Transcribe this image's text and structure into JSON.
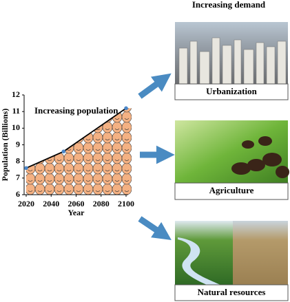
{
  "chart_data": {
    "type": "line",
    "title": "Increasing population",
    "x_label": "Year",
    "y_label": "Population (Billions)",
    "x": [
      2020,
      2050,
      2100
    ],
    "values": [
      7.6,
      8.6,
      11.2
    ],
    "color": "#000000",
    "marker_color": "#4a86c8",
    "fill_color": "#f4b183",
    "xlim": [
      2020,
      2100
    ],
    "xticks": [
      2020,
      2040,
      2060,
      2080,
      2100
    ],
    "ylim": [
      6,
      12
    ],
    "yticks": [
      6,
      7,
      8,
      9,
      10,
      11,
      12
    ]
  },
  "demand": {
    "title": "Increasing demand",
    "items": [
      {
        "label": "Urbanization"
      },
      {
        "label": "Agriculture"
      },
      {
        "label": "Natural resources"
      }
    ]
  }
}
